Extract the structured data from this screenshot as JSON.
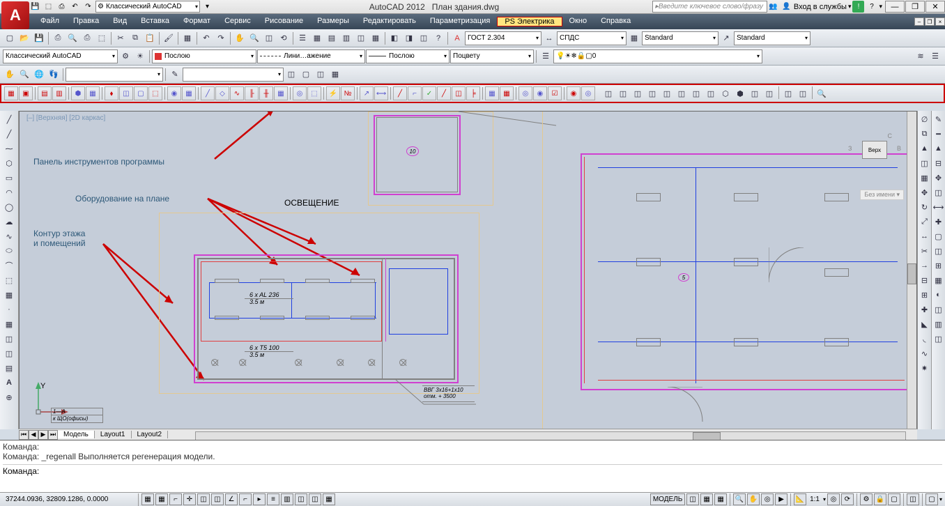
{
  "app": {
    "name": "AutoCAD 2012",
    "document": "План здания.dwg"
  },
  "workspace_selector": "Классический AutoCAD",
  "search_placeholder": "Введите ключевое слово/фразу",
  "login_text": "Вход в службы",
  "menu": {
    "items": [
      "Файл",
      "Правка",
      "Вид",
      "Вставка",
      "Формат",
      "Сервис",
      "Рисование",
      "Размеры",
      "Редактировать",
      "Параметризация",
      "PS Электрика",
      "Окно",
      "Справка"
    ],
    "highlighted_index": 10
  },
  "dropdowns": {
    "text_style": "ГОСТ 2.304",
    "standard1": "СПДС",
    "dim_style": "Standard",
    "table_style": "Standard",
    "workspace2": "Классический AutoCAD",
    "layer_color": "Послою",
    "linetype": "Лини…ажение",
    "lineweight": "Послою",
    "plot_style": "Поцвету",
    "layer_list": "0"
  },
  "annotations": {
    "toolbar": "Панель инструментов программы",
    "equipment": "Оборудование на плане",
    "contour_l1": "Контур этажа",
    "contour_l2": "и помещений"
  },
  "viewport_label": "[–] [Верхняя] [2D каркас]",
  "viewcube": {
    "face": "Верх",
    "no_name": "Без имени"
  },
  "canvas": {
    "lighting_title": "ОСВЕЩЕНИЕ",
    "eq_label1_line1": "6 x AL 236",
    "eq_label1_line2": "3.5 м",
    "eq_label2_line1": "6 x T5 100",
    "eq_label2_line2": "3.5 м",
    "cable_l1": "ВВГ 3x16+1x10",
    "cable_l2": "отм. + 3500",
    "ucs_y": "Y",
    "room_marker": "10",
    "marker2": "5",
    "title_block_l1": "1—A",
    "title_block_l2": "к ЩО(офисы)"
  },
  "tabs": {
    "items": [
      "Модель",
      "Layout1",
      "Layout2"
    ],
    "active_index": 0
  },
  "command": {
    "line1": "Команда:",
    "line2": "Команда: _regenall Выполняется регенерация модели.",
    "prompt": "Команда:"
  },
  "status": {
    "coords": "37244.0936, 32809.1286, 0.0000",
    "model_btn": "МОДЕЛЬ",
    "scale": "1:1"
  },
  "colors": {
    "canvas_bg": "#c5cdd9",
    "annotation_text": "#2d5878",
    "highlight_red": "#c00000",
    "menu_bg_dark": "#374656",
    "plan_outer": "#e4c890",
    "plan_wall": "#808080",
    "plan_magenta": "#d040d0",
    "plan_blue": "#2040e0",
    "plan_red": "#e04040"
  }
}
